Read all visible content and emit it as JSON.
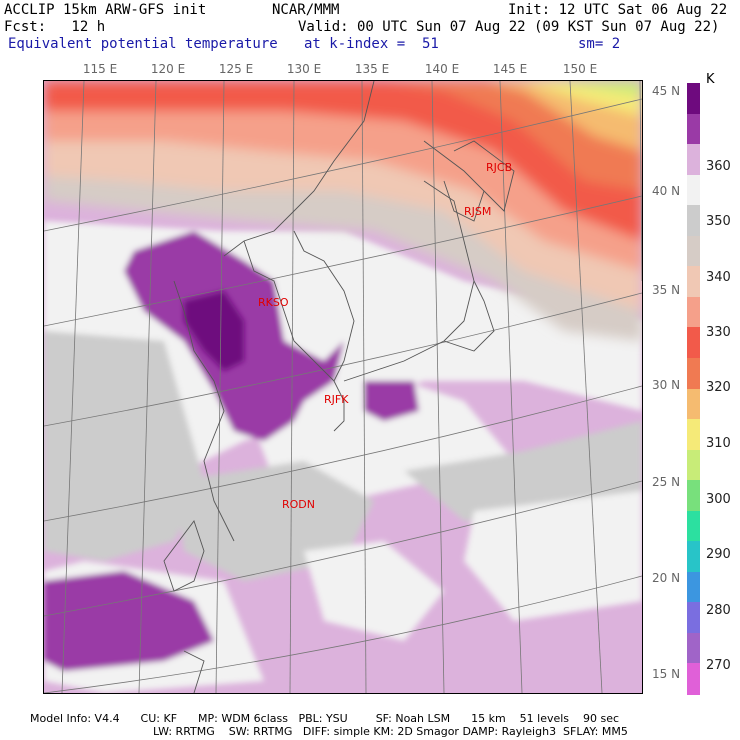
{
  "header": {
    "line1_left": "ACCLIP 15km ARW-GFS init",
    "line1_mid": "NCAR/MMM",
    "line1_right": "Init: 12 UTC Sat 06 Aug 22",
    "line2_left": "Fcst:   12 h",
    "line2_right": "Valid: 00 UTC Sun 07 Aug 22 (09 KST Sun 07 Aug 22)",
    "line3_left": "Equivalent potential temperature",
    "line3_mid": "at k-index =  51",
    "line3_right": "sm= 2"
  },
  "longitude_labels": [
    "115 E",
    "120 E",
    "125 E",
    "130 E",
    "135 E",
    "140 E",
    "145 E",
    "150 E"
  ],
  "latitude_labels": [
    "45 N",
    "40 N",
    "35 N",
    "30 N",
    "25 N",
    "20 N",
    "15 N"
  ],
  "stations": [
    "RJCB",
    "RJSM",
    "RKSO",
    "RJFK",
    "RODN"
  ],
  "colorbar": {
    "unit": "K",
    "labels": [
      "360",
      "350",
      "340",
      "330",
      "320",
      "310",
      "300",
      "290",
      "280",
      "270"
    ],
    "colors": [
      "#6e0a7e",
      "#9a3aa6",
      "#dcb2dc",
      "#f2f2f2",
      "#cccccc",
      "#d6ccc6",
      "#f0c8b4",
      "#f5a08a",
      "#f25a4a",
      "#f07a52",
      "#f5bb70",
      "#f5ea78",
      "#c8ec78",
      "#78e07c",
      "#2ce0a0",
      "#28c4c8",
      "#3c96e0",
      "#7a6ee0",
      "#a064c8",
      "#e060d8"
    ]
  },
  "footer": {
    "line1": "Model Info: V4.4      CU: KF      MP: WDM 6class   PBL: YSU        SF: Noah LSM      15 km    51 levels    90 sec",
    "line2": "LW: RRTMG    SW: RRTMG   DIFF: simple KM: 2D Smagor DAMP: Rayleigh3  SFLAY: MM5"
  }
}
